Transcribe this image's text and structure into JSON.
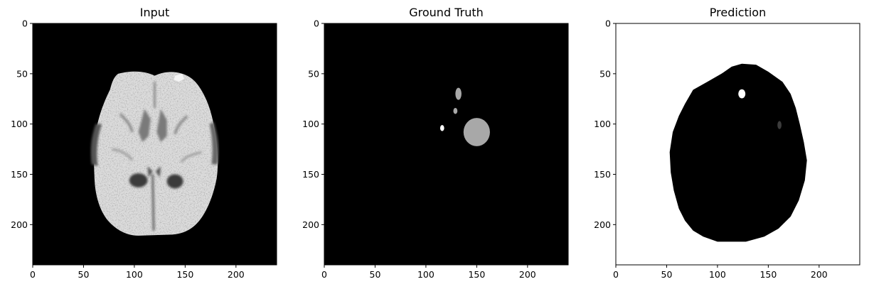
{
  "chart_data": [
    {
      "type": "heatmap",
      "title": "Input",
      "colormap": "gray",
      "background": "#000000",
      "xlim": [
        0,
        240
      ],
      "ylim": [
        240,
        0
      ],
      "x_ticks": [
        0,
        50,
        100,
        150,
        200
      ],
      "y_ticks": [
        0,
        50,
        100,
        150,
        200
      ],
      "x_tick_labels": [
        "0",
        "50",
        "100",
        "150",
        "200"
      ],
      "y_tick_labels": [
        "0",
        "50",
        "100",
        "150",
        "200"
      ],
      "content": "brain-mri-axial-slice"
    },
    {
      "type": "heatmap",
      "title": "Ground Truth",
      "colormap": "gray",
      "background": "#000000",
      "xlim": [
        0,
        240
      ],
      "ylim": [
        240,
        0
      ],
      "x_ticks": [
        0,
        50,
        100,
        150,
        200
      ],
      "y_ticks": [
        0,
        50,
        100,
        150,
        200
      ],
      "x_tick_labels": [
        "0",
        "50",
        "100",
        "150",
        "200"
      ],
      "y_tick_labels": [
        "0",
        "50",
        "100",
        "150",
        "200"
      ],
      "regions": [
        {
          "shape": "blob",
          "cx": 150,
          "cy": 108,
          "rx": 13,
          "ry": 14,
          "color": "#a8a8a8"
        },
        {
          "shape": "blob",
          "cx": 132,
          "cy": 70,
          "rx": 3,
          "ry": 6,
          "color": "#a8a8a8"
        },
        {
          "shape": "blob",
          "cx": 129,
          "cy": 87,
          "rx": 2,
          "ry": 3,
          "color": "#a8a8a8"
        },
        {
          "shape": "blob",
          "cx": 116,
          "cy": 104,
          "rx": 2,
          "ry": 3,
          "color": "#ffffff"
        }
      ]
    },
    {
      "type": "heatmap",
      "title": "Prediction",
      "colormap": "gray",
      "background": "#ffffff",
      "xlim": [
        0,
        240
      ],
      "ylim": [
        240,
        0
      ],
      "x_ticks": [
        0,
        50,
        100,
        150,
        200
      ],
      "y_ticks": [
        0,
        50,
        100,
        150,
        200
      ],
      "x_tick_labels": [
        "0",
        "50",
        "100",
        "150",
        "200"
      ],
      "y_tick_labels": [
        "0",
        "50",
        "100",
        "150",
        "200"
      ],
      "regions": [
        {
          "shape": "head-mask",
          "color": "#000000"
        },
        {
          "shape": "blob",
          "cx": 124,
          "cy": 70,
          "rx": 3.5,
          "ry": 4.5,
          "color": "#ffffff"
        },
        {
          "shape": "blob",
          "cx": 161,
          "cy": 101,
          "rx": 2,
          "ry": 4,
          "color": "#3c3c3c"
        }
      ]
    }
  ]
}
